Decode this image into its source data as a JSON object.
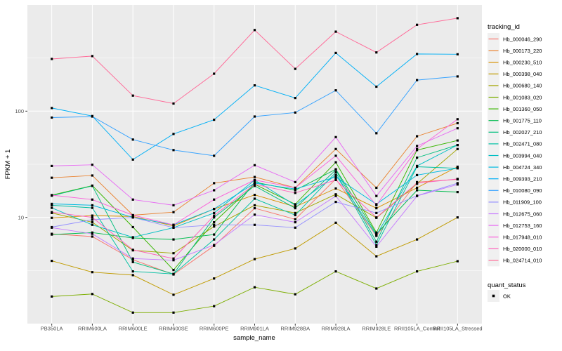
{
  "chart_data": {
    "type": "line",
    "title": "",
    "xlabel": "sample_name",
    "ylabel": "FPKM + 1",
    "yscale": "log10",
    "ylim": [
      1,
      1000
    ],
    "yticks": [
      {
        "value": 10,
        "label": "10"
      },
      {
        "value": 100,
        "label": "100"
      }
    ],
    "minor_breaks": [
      3.1623,
      31.623,
      316.23
    ],
    "grid": "on",
    "legend_position": "right",
    "panel_bg": "#EBEBEB",
    "grid_color": "#FFFFFF",
    "tick_color": "#333333",
    "tick_label_color": "#4D4D4D",
    "point_shape": "filled-square",
    "point_color": "#000000",
    "legend_key_bg": "#F0F0F0",
    "legend": {
      "series_title": "tracking_id",
      "status_title": "quant_status",
      "status_label": "OK"
    },
    "categories": [
      "PB350LA",
      "RRIM600LA",
      "RRIM600LE",
      "RRIM600SE",
      "RRIM600PE",
      "RRIM901LA",
      "RRIM928BA",
      "RRIM928LA",
      "RRIM928LE",
      "RRII105LA_Control",
      "RRII105LA_Stressed"
    ],
    "series": [
      {
        "name": "Hb_000046_290",
        "color": "#F8766D",
        "values": [
          7.0,
          6.6,
          4.0,
          2.9,
          5.4,
          12.2,
          9.6,
          23,
          6.7,
          21.5,
          22.8
        ]
      },
      {
        "name": "Hb_000173_220",
        "color": "#EA8331",
        "values": [
          23.6,
          24.8,
          10.5,
          11.2,
          21,
          24,
          19,
          44,
          19,
          58,
          77
        ]
      },
      {
        "name": "Hb_000230_510",
        "color": "#D89000",
        "values": [
          9.9,
          10.4,
          10.2,
          8.3,
          12,
          16.3,
          12.6,
          18.7,
          12.2,
          19,
          30
        ]
      },
      {
        "name": "Hb_000398_040",
        "color": "#C09B00",
        "values": [
          3.9,
          3.05,
          2.86,
          1.87,
          2.66,
          4.05,
          5.1,
          8.9,
          4.3,
          6.2,
          10
        ]
      },
      {
        "name": "Hb_000680_140",
        "color": "#A3A500",
        "values": [
          11.0,
          9.0,
          4.9,
          4.6,
          8.2,
          13,
          11,
          16.5,
          9.9,
          20.7,
          44
        ]
      },
      {
        "name": "Hb_001083_020",
        "color": "#7CAE00",
        "values": [
          1.8,
          1.9,
          1.27,
          1.27,
          1.46,
          2.2,
          1.89,
          3.1,
          2.14,
          3.1,
          3.87
        ]
      },
      {
        "name": "Hb_001360_050",
        "color": "#39B600",
        "values": [
          16.2,
          19.9,
          8.1,
          3.2,
          9.0,
          20.5,
          13.3,
          33,
          7.2,
          43,
          53
        ]
      },
      {
        "name": "Hb_001775_110",
        "color": "#00BB4E",
        "values": [
          6.9,
          7.2,
          6.4,
          6.2,
          6.9,
          21.5,
          18,
          28.4,
          7.0,
          18,
          17.3
        ]
      },
      {
        "name": "Hb_002027_210",
        "color": "#00BF7D",
        "values": [
          16.0,
          19.8,
          3.8,
          2.93,
          10,
          19.8,
          12.2,
          28,
          5.9,
          36.5,
          48
        ]
      },
      {
        "name": "Hb_002471_080",
        "color": "#00C1A3",
        "values": [
          13.0,
          12.3,
          3.1,
          2.93,
          6.2,
          15,
          10.5,
          26.5,
          5.5,
          30,
          29
        ]
      },
      {
        "name": "Hb_003994_040",
        "color": "#00BFC4",
        "values": [
          12.3,
          8.5,
          6.5,
          8.0,
          11,
          22.5,
          13,
          25,
          6.8,
          30.5,
          48
        ]
      },
      {
        "name": "Hb_004724_340",
        "color": "#00BAE0",
        "values": [
          13.4,
          13.0,
          10.0,
          8.5,
          12,
          21,
          18.5,
          24,
          13.3,
          25,
          29
        ]
      },
      {
        "name": "Hb_009393_210",
        "color": "#00B0F6",
        "values": [
          107,
          90,
          35,
          61,
          83,
          175,
          133,
          353,
          170,
          345,
          343
        ]
      },
      {
        "name": "Hb_010080_090",
        "color": "#35A2FF",
        "values": [
          87,
          89,
          54,
          43,
          38,
          89,
          97,
          157,
          62,
          196,
          212
        ]
      },
      {
        "name": "Hb_011909_100",
        "color": "#9590FF",
        "values": [
          8.1,
          9.5,
          10.0,
          8.0,
          8.5,
          8.5,
          8.0,
          14,
          11,
          16,
          21
        ]
      },
      {
        "name": "Hb_012675_060",
        "color": "#C77CFF",
        "values": [
          8.0,
          7.0,
          4.1,
          3.95,
          5.5,
          10.6,
          9.0,
          15.9,
          5.3,
          15.9,
          20.4
        ]
      },
      {
        "name": "Hb_012753_160",
        "color": "#E76BF3",
        "values": [
          30.5,
          31.3,
          14.7,
          13,
          18,
          31,
          21.5,
          57,
          15.9,
          47,
          69
        ]
      },
      {
        "name": "Hb_017948_010",
        "color": "#FA62DB",
        "values": [
          16.2,
          14.7,
          10.5,
          8.5,
          14.7,
          22.5,
          19,
          38,
          13,
          44,
          84
        ]
      },
      {
        "name": "Hb_020000_010",
        "color": "#FF62BC",
        "values": [
          11.2,
          10.0,
          4.95,
          4.1,
          10.4,
          20.5,
          17,
          22.5,
          10,
          21,
          23
        ]
      },
      {
        "name": "Hb_024714_010",
        "color": "#FF6A98",
        "values": [
          310,
          330,
          140,
          118,
          225,
          580,
          250,
          560,
          357,
          650,
          750
        ]
      }
    ]
  }
}
